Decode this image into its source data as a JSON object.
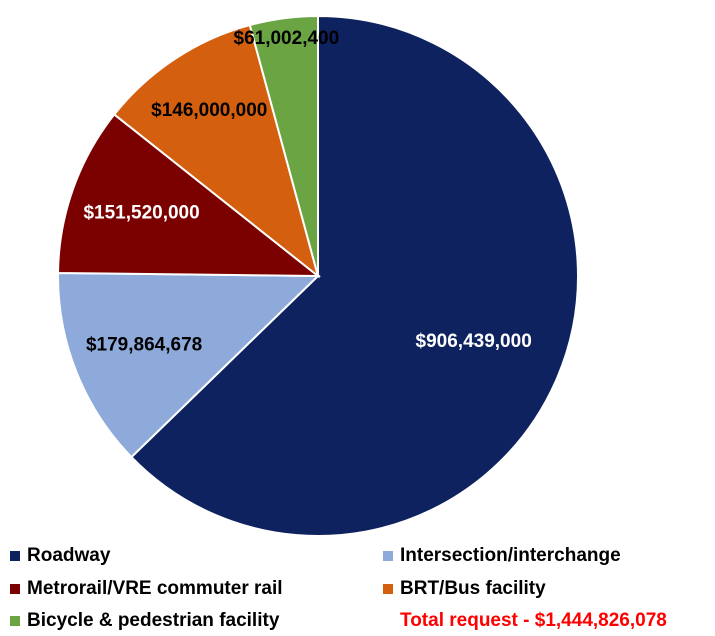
{
  "chart_data": {
    "type": "pie",
    "categories": [
      "Roadway",
      "Intersection/interchange",
      "Metrorail/VRE commuter rail",
      "BRT/Bus facility",
      "Bicycle & pedestrian facility"
    ],
    "values": [
      906439000,
      179864678,
      151520000,
      146000000,
      61002400
    ],
    "value_labels": [
      "$906,439,000",
      "$179,864,678",
      "$151,520,000",
      "$146,000,000",
      "$61,002,400"
    ],
    "colors": [
      "#0e2260",
      "#8eaadb",
      "#7b0000",
      "#d4600f",
      "#6aa443"
    ],
    "annotation": "Total request - $1,444,826,078",
    "annotation_color": "#ff0000"
  }
}
